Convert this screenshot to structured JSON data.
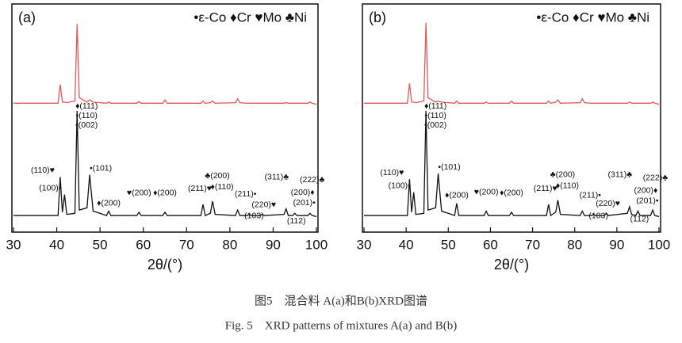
{
  "figure": {
    "caption_cn": "图5　混合料 A(a)和B(b)XRD图谱",
    "caption_en": "Fig. 5　XRD patterns of mixtures A(a) and B(b)"
  },
  "chart_data": [
    {
      "type": "line",
      "panel": "(a)",
      "legend_text": "•ε-Co ♦Cr ♥Mo ♣Ni",
      "x_label": "2θ/(°)",
      "xlim": [
        30,
        100
      ],
      "xticks": [
        30,
        40,
        50,
        60,
        70,
        80,
        90,
        100
      ],
      "ylim": [
        0,
        195
      ],
      "x": [
        30,
        40.3,
        40.8,
        41.3,
        41.8,
        42.3,
        44.2,
        44.7,
        45.2,
        47.0,
        47.6,
        48.4,
        51.5,
        52,
        52.5,
        58.5,
        59,
        59.5,
        64.5,
        65,
        65.5,
        73.3,
        73.8,
        74.3,
        75.5,
        76,
        76.6,
        81.3,
        81.8,
        82.3,
        84,
        84.5,
        85,
        87,
        87.5,
        88,
        92.5,
        93,
        93.5,
        94.5,
        95,
        95.5,
        98,
        98.5,
        99,
        100
      ],
      "series": [
        {
          "color": "#e05a5a",
          "values": [
            107,
            107,
            124,
            108,
            108,
            107.5,
            109,
            179,
            112,
            108,
            110,
            108,
            107,
            108,
            107,
            107,
            108.5,
            107,
            107,
            110,
            107,
            107,
            109,
            107,
            107.5,
            109,
            107,
            107.5,
            111,
            107.5,
            107,
            107,
            107,
            107,
            107,
            107,
            107,
            107.5,
            107,
            107,
            107,
            107,
            107,
            108,
            107,
            106
          ]
        },
        {
          "color": "#111111",
          "values": [
            5,
            5,
            40,
            8,
            24,
            6,
            7,
            100,
            10,
            12,
            42,
            9,
            5,
            9,
            5,
            5,
            8,
            5,
            5,
            8,
            5,
            5,
            15,
            5,
            7,
            18,
            6,
            5,
            10,
            5,
            5,
            6,
            5,
            5,
            6,
            5,
            6,
            11,
            5,
            5,
            7,
            5,
            5,
            7,
            5,
            4
          ]
        }
      ],
      "annotations": [
        {
          "x": 40.8,
          "label": "(110)♥"
        },
        {
          "x": 41.8,
          "label": "(100)•"
        },
        {
          "x": 44.7,
          "label": "♦(111)"
        },
        {
          "x": 44.7,
          "label": "•(110)"
        },
        {
          "x": 44.7,
          "label": "•(002)"
        },
        {
          "x": 47.6,
          "label": "•(101)"
        },
        {
          "x": 52,
          "label": "♦(200)"
        },
        {
          "x": 59,
          "label": "♥(200)"
        },
        {
          "x": 65,
          "label": "♦(200)"
        },
        {
          "x": 73.8,
          "label": "(211)♥"
        },
        {
          "x": 76,
          "label": "♣(200)"
        },
        {
          "x": 76,
          "label": "♦(110)"
        },
        {
          "x": 81.8,
          "label": "(211)•"
        },
        {
          "x": 84.5,
          "label": "(103)"
        },
        {
          "x": 87.5,
          "label": "(220)♥"
        },
        {
          "x": 93,
          "label": "(311)♣"
        },
        {
          "x": 95,
          "label": "(222)♣"
        },
        {
          "x": 95,
          "label": "(200)♦"
        },
        {
          "x": 95,
          "label": "(201)•"
        },
        {
          "x": 95,
          "label": "(112)"
        }
      ]
    },
    {
      "type": "line",
      "panel": "(b)",
      "legend_text": "•ε-Co ♦Cr ♥Mo ♣Ni",
      "x_label": "2θ/(°)",
      "xlim": [
        30,
        100
      ],
      "xticks": [
        30,
        40,
        50,
        60,
        70,
        80,
        90,
        100
      ],
      "ylim": [
        0,
        195
      ],
      "x": [
        30,
        40.3,
        40.8,
        41.3,
        41.8,
        42.3,
        44.2,
        44.7,
        45.2,
        47.0,
        47.6,
        48.4,
        51.5,
        52,
        52.5,
        58.5,
        59,
        59.5,
        64.5,
        65,
        65.5,
        73.3,
        73.8,
        74.3,
        75.5,
        76,
        76.6,
        81.3,
        81.8,
        82.3,
        84,
        84.5,
        85,
        87,
        87.5,
        88,
        92.5,
        93,
        93.5,
        94.5,
        95,
        95.5,
        98,
        98.5,
        99,
        100
      ],
      "series": [
        {
          "color": "#e05a5a",
          "values": [
            107,
            107,
            125,
            108,
            108,
            107.5,
            109,
            180,
            112,
            108,
            109,
            108,
            107,
            109,
            107,
            107,
            108,
            107,
            107,
            109,
            107,
            107,
            109,
            107,
            108,
            110,
            107,
            107.5,
            111,
            107.5,
            107,
            107,
            107,
            107,
            107,
            107,
            107,
            108,
            107,
            107,
            107,
            107,
            107,
            108,
            107,
            106
          ]
        },
        {
          "color": "#111111",
          "values": [
            5,
            5,
            38,
            8,
            26,
            6,
            7,
            100,
            10,
            12,
            43,
            9,
            5,
            16,
            5,
            5,
            9,
            5,
            5,
            8,
            5,
            5,
            15,
            5,
            8,
            19,
            6,
            5,
            9,
            5,
            5,
            6,
            5,
            5,
            7,
            5,
            7,
            13,
            6,
            5,
            9,
            5,
            5,
            10,
            5,
            4
          ]
        }
      ],
      "annotations": [
        {
          "x": 40.8,
          "label": "(110)♥"
        },
        {
          "x": 41.8,
          "label": "(100)•"
        },
        {
          "x": 44.7,
          "label": "♦(111)"
        },
        {
          "x": 44.7,
          "label": "•(110)"
        },
        {
          "x": 44.7,
          "label": "•(002)"
        },
        {
          "x": 47.6,
          "label": "•(101)"
        },
        {
          "x": 52,
          "label": "♦(200)"
        },
        {
          "x": 59,
          "label": "♥(200)"
        },
        {
          "x": 65,
          "label": "♦(200)"
        },
        {
          "x": 73.8,
          "label": "(211)♥"
        },
        {
          "x": 76,
          "label": "♣(200)"
        },
        {
          "x": 76,
          "label": "♦(110)"
        },
        {
          "x": 81.8,
          "label": "(211)•"
        },
        {
          "x": 84.5,
          "label": "(103)"
        },
        {
          "x": 87.5,
          "label": "(220)♥"
        },
        {
          "x": 93,
          "label": "(311)♣"
        },
        {
          "x": 95,
          "label": "(222)♣"
        },
        {
          "x": 95,
          "label": "(200)♦"
        },
        {
          "x": 95,
          "label": "(201)•"
        },
        {
          "x": 95,
          "label": "(112)"
        }
      ]
    }
  ]
}
